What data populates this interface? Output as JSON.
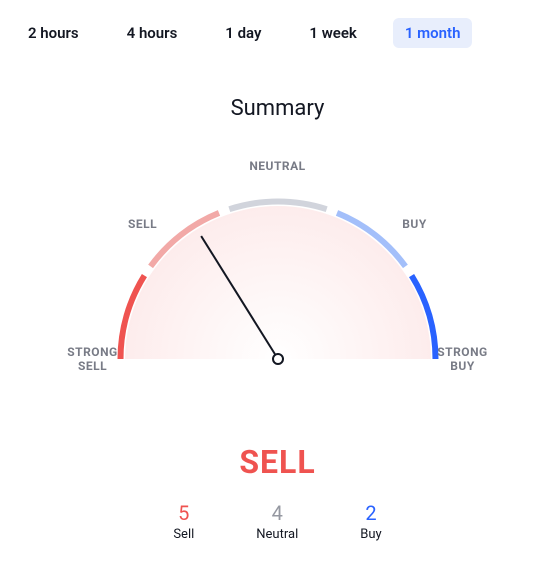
{
  "tabs": [
    {
      "label": "2 hours",
      "active": false
    },
    {
      "label": "4 hours",
      "active": false
    },
    {
      "label": "1 day",
      "active": false
    },
    {
      "label": "1 week",
      "active": false
    },
    {
      "label": "1 month",
      "active": true
    }
  ],
  "tab_style": {
    "fontsize": 15,
    "active_bg": "#e8eefc",
    "active_color": "#2962ff",
    "inactive_color": "#131722"
  },
  "title": "Summary",
  "title_fontsize": 22,
  "gauge": {
    "type": "gauge",
    "radius_outer": 160,
    "radius_inner": 155,
    "stroke_width": 6,
    "gap_deg": 4,
    "segments": [
      {
        "id": "strong_sell",
        "label": "STRONG\nSELL",
        "start_deg": 180,
        "end_deg": 148,
        "color": "#ef5350"
      },
      {
        "id": "sell",
        "label": "SELL",
        "start_deg": 144,
        "end_deg": 112,
        "color": "#f2a9a7"
      },
      {
        "id": "neutral",
        "label": "NEUTRAL",
        "start_deg": 108,
        "end_deg": 72,
        "color": "#d1d4dc"
      },
      {
        "id": "buy",
        "label": "BUY",
        "start_deg": 68,
        "end_deg": 36,
        "color": "#a3bffa"
      },
      {
        "id": "strong_buy",
        "label": "STRONG\nBUY",
        "start_deg": 32,
        "end_deg": 0,
        "color": "#2962ff"
      }
    ],
    "label_fontsize": 12,
    "label_color": "#787b86",
    "fill_gradient": {
      "from": "#fdecec",
      "to": "#ffffff"
    },
    "needle": {
      "angle_deg": 122,
      "length": 145,
      "color": "#131722",
      "width": 2,
      "hub_radius": 5,
      "hub_stroke": "#131722",
      "hub_fill": "#ffffff"
    },
    "background_color": "#ffffff"
  },
  "verdict": {
    "text": "SELL",
    "color": "#ef5350",
    "fontsize": 32
  },
  "counts": {
    "sell": {
      "value": "5",
      "label": "Sell",
      "color": "#ef5350"
    },
    "neutral": {
      "value": "4",
      "label": "Neutral",
      "color": "#9598a1"
    },
    "buy": {
      "value": "2",
      "label": "Buy",
      "color": "#2962ff"
    },
    "value_fontsize": 20,
    "label_fontsize": 13
  }
}
